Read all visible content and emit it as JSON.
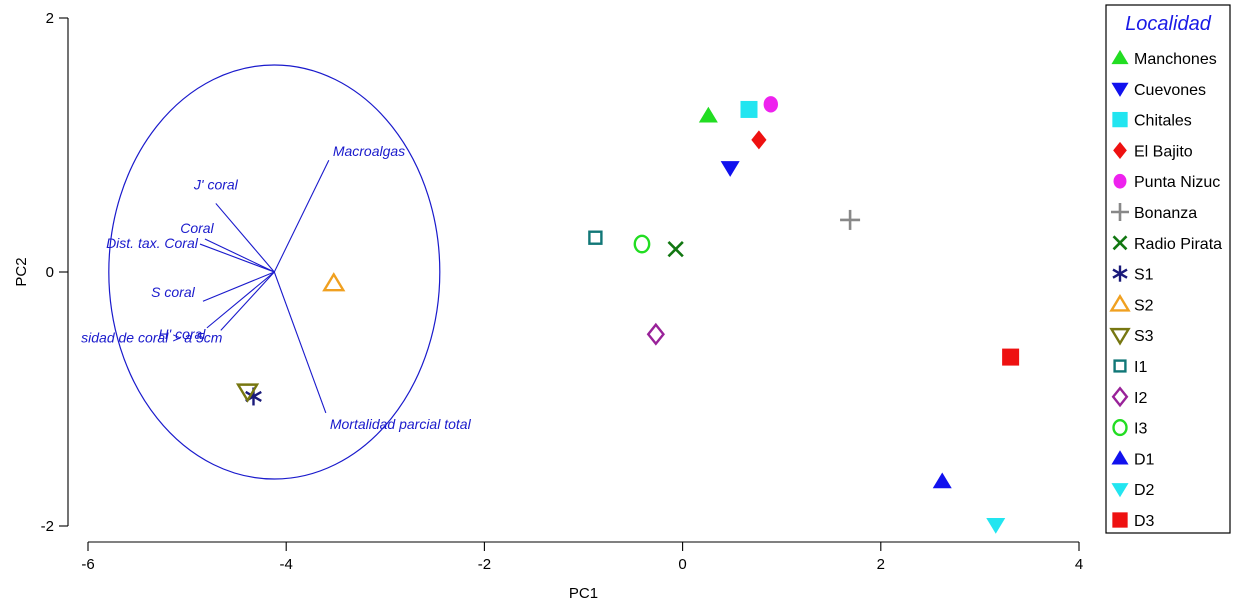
{
  "chart_data": {
    "type": "scatter",
    "xlabel": "PC1",
    "ylabel": "PC2",
    "xlim": [
      -6.2,
      4
    ],
    "ylim": [
      -2.05,
      2
    ],
    "xticks": [
      -6,
      -4,
      -2,
      0,
      2,
      4
    ],
    "yticks": [
      -2,
      0,
      2
    ],
    "legend": {
      "title": "Localidad",
      "placement": "right"
    },
    "series": [
      {
        "name": "Manchones",
        "marker": "triangle-up-filled",
        "color": "#22dd22",
        "points": [
          [
            0.26,
            1.23
          ]
        ]
      },
      {
        "name": "Cuevones",
        "marker": "triangle-down-filled",
        "color": "#1111ee",
        "points": [
          [
            0.48,
            0.82
          ]
        ]
      },
      {
        "name": "Chitales",
        "marker": "square-filled",
        "color": "#22e5f0",
        "points": [
          [
            0.67,
            1.28
          ]
        ]
      },
      {
        "name": "El Bajito",
        "marker": "diamond-filled",
        "color": "#ee1111",
        "points": [
          [
            0.77,
            1.04
          ]
        ]
      },
      {
        "name": "Punta Nizuc",
        "marker": "circle-filled",
        "color": "#ee22ee",
        "points": [
          [
            0.89,
            1.32
          ]
        ]
      },
      {
        "name": "Bonanza",
        "marker": "plus",
        "color": "#888888",
        "points": [
          [
            1.69,
            0.41
          ]
        ]
      },
      {
        "name": "Radio Pirata",
        "marker": "x",
        "color": "#117711",
        "points": [
          [
            -0.07,
            0.18
          ]
        ]
      },
      {
        "name": "S1",
        "marker": "asterisk",
        "color": "#1a1a7a",
        "points": [
          [
            -4.33,
            -0.98
          ]
        ]
      },
      {
        "name": "S2",
        "marker": "triangle-up-open",
        "color": "#f0a020",
        "points": [
          [
            -3.52,
            -0.09
          ]
        ]
      },
      {
        "name": "S3",
        "marker": "triangle-down-open",
        "color": "#777711",
        "points": [
          [
            -4.39,
            -0.94
          ]
        ]
      },
      {
        "name": "I1",
        "marker": "square-open",
        "color": "#117777",
        "points": [
          [
            -0.88,
            0.27
          ]
        ]
      },
      {
        "name": "I2",
        "marker": "diamond-open",
        "color": "#992299",
        "points": [
          [
            -0.27,
            -0.49
          ]
        ]
      },
      {
        "name": "I3",
        "marker": "circle-open",
        "color": "#22dd22",
        "points": [
          [
            -0.41,
            0.22
          ]
        ]
      },
      {
        "name": "D1",
        "marker": "triangle-up-filled",
        "color": "#1111ee",
        "points": [
          [
            2.62,
            -1.65
          ]
        ]
      },
      {
        "name": "D2",
        "marker": "triangle-down-filled",
        "color": "#22e5f0",
        "points": [
          [
            3.16,
            -1.99
          ]
        ]
      },
      {
        "name": "D3",
        "marker": "square-filled",
        "color": "#ee1111",
        "points": [
          [
            3.31,
            -0.67
          ]
        ]
      }
    ],
    "vectors": {
      "origin": [
        -4.12,
        0.0
      ],
      "color": "#1a1acc",
      "circle": {
        "center": [
          -4.12,
          0.0
        ],
        "radius_x": 1.67,
        "radius_y": 1.63
      },
      "items": [
        {
          "label": "Macroalgas",
          "end": [
            -3.57,
            0.88
          ]
        },
        {
          "label": "J' coral",
          "end": [
            -4.71,
            0.54
          ]
        },
        {
          "label": "Coral",
          "end": [
            -4.82,
            0.26
          ]
        },
        {
          "label": "Dist. tax. Coral",
          "end": [
            -4.87,
            0.22
          ]
        },
        {
          "label": "S coral",
          "end": [
            -4.84,
            -0.23
          ]
        },
        {
          "label": "H' coral",
          "end": [
            -4.8,
            -0.44
          ]
        },
        {
          "label": "sidad de coral > a 5cm",
          "end": [
            -4.66,
            -0.46
          ]
        },
        {
          "label": "Mortalidad parcial total",
          "end": [
            -3.6,
            -1.11
          ]
        }
      ]
    }
  }
}
